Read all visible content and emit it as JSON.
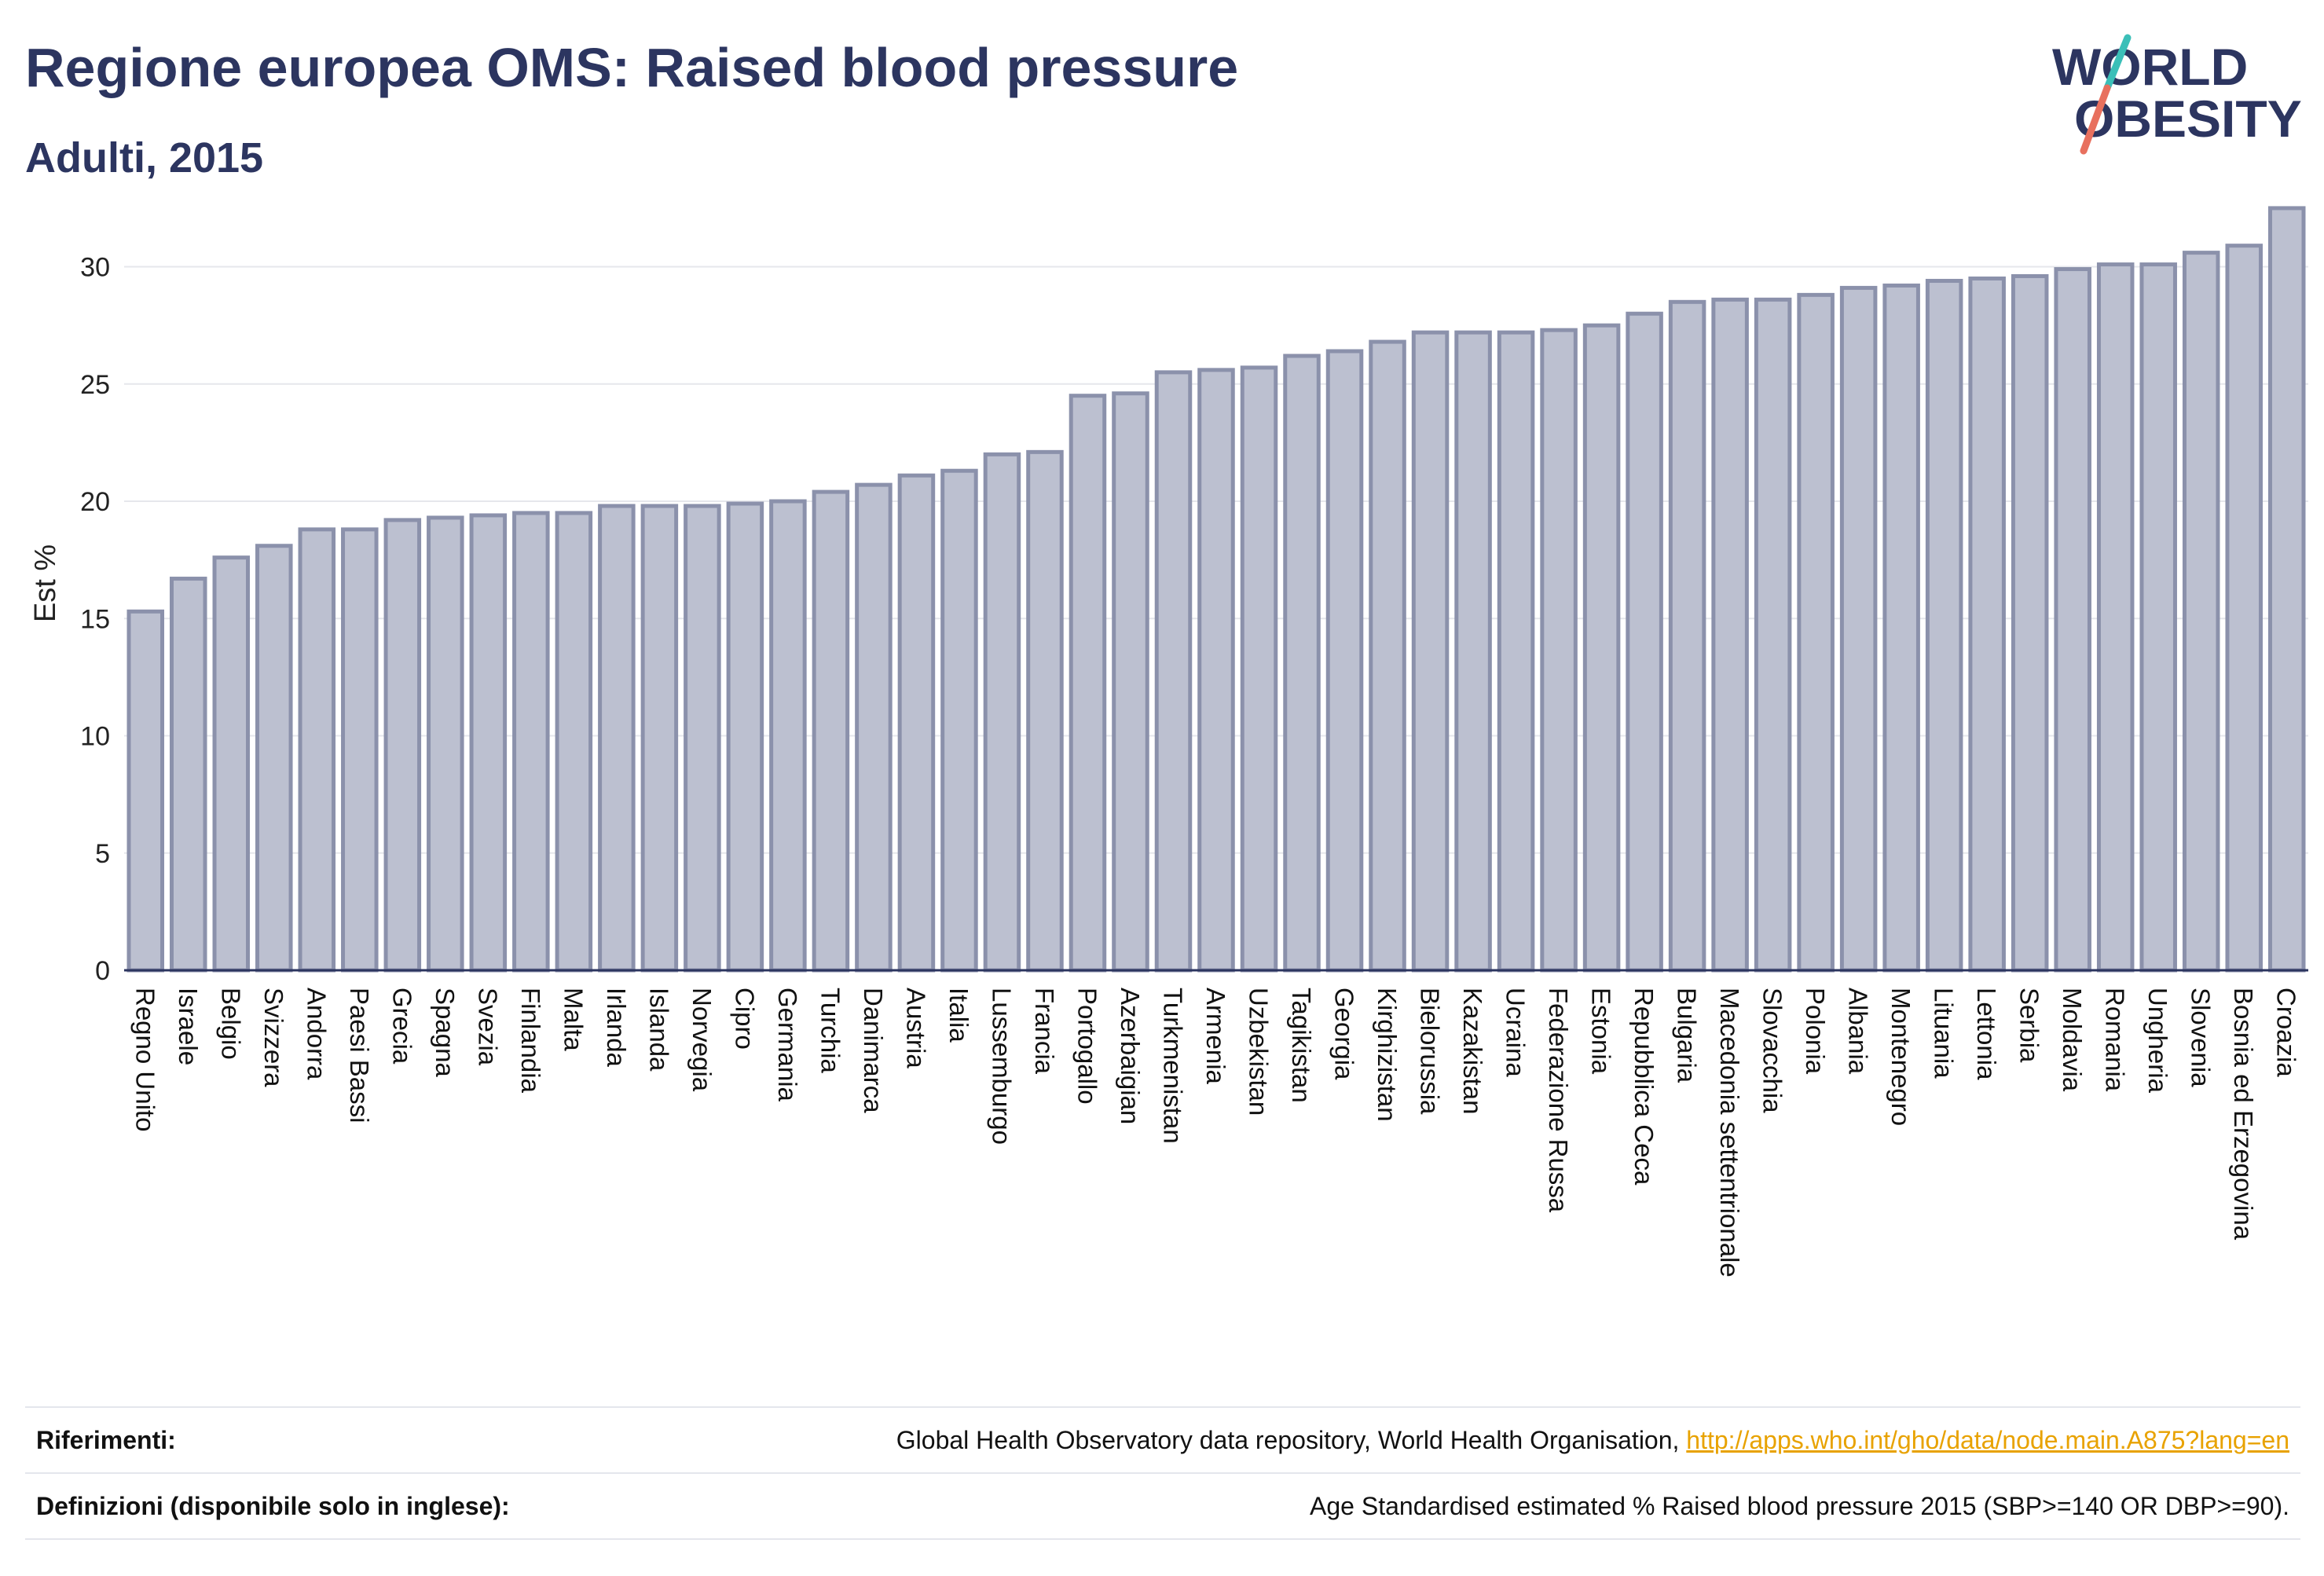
{
  "header": {
    "title": "Regione europea OMS: Raised blood pressure",
    "subtitle": "Adulti, 2015"
  },
  "logo": {
    "line1": "WORLD",
    "line2": "OBESITY",
    "accent_colors": [
      "#3bbfb8",
      "#e8705e"
    ]
  },
  "chart_data": {
    "type": "bar",
    "title": "Regione europea OMS: Raised blood pressure",
    "subtitle": "Adulti, 2015",
    "xlabel": "",
    "ylabel": "Est %",
    "ylim": [
      0,
      33
    ],
    "yticks": [
      0,
      5,
      10,
      15,
      20,
      25,
      30
    ],
    "grid": true,
    "bar_color": "#bcc0d0",
    "bar_edge_color": "#8b91ab",
    "categories": [
      "Regno Unito",
      "Israele",
      "Belgio",
      "Svizzera",
      "Andorra",
      "Paesi Bassi",
      "Grecia",
      "Spagna",
      "Svezia",
      "Finlandia",
      "Malta",
      "Irlanda",
      "Islanda",
      "Norvegia",
      "Cipro",
      "Germania",
      "Turchia",
      "Danimarca",
      "Austria",
      "Italia",
      "Lussemburgo",
      "Francia",
      "Portogallo",
      "Azerbaigian",
      "Turkmenistan",
      "Armenia",
      "Uzbekistan",
      "Tagikistan",
      "Georgia",
      "Kirghizistan",
      "Bielorussia",
      "Kazakistan",
      "Ucraina",
      "Federazione Russa",
      "Estonia",
      "Repubblica Ceca",
      "Bulgaria",
      "Macedonia settentrionale",
      "Slovacchia",
      "Polonia",
      "Albania",
      "Montenegro",
      "Lituania",
      "Lettonia",
      "Serbia",
      "Moldavia",
      "Romania",
      "Ungheria",
      "Slovenia",
      "Bosnia ed Erzegovina",
      "Croazia"
    ],
    "values": [
      15.3,
      16.7,
      17.6,
      18.1,
      18.8,
      18.8,
      19.2,
      19.3,
      19.4,
      19.5,
      19.5,
      19.8,
      19.8,
      19.8,
      19.9,
      20.0,
      20.4,
      20.7,
      21.1,
      21.3,
      22.0,
      22.1,
      24.5,
      24.6,
      25.5,
      25.6,
      25.7,
      26.2,
      26.4,
      26.8,
      27.2,
      27.2,
      27.2,
      27.3,
      27.5,
      28.0,
      28.5,
      28.6,
      28.6,
      28.8,
      29.1,
      29.2,
      29.4,
      29.5,
      29.6,
      29.9,
      30.1,
      30.1,
      30.6,
      30.9,
      32.5
    ]
  },
  "references": {
    "riferimenti_label": "Riferimenti:",
    "riferimenti_text": "Global Health Observatory data repository, World Health Organisation, ",
    "riferimenti_link": "http://apps.who.int/gho/data/node.main.A875?lang=en",
    "definizioni_label": "Definizioni (disponibile solo in inglese):",
    "definizioni_text": "Age Standardised estimated % Raised blood pressure 2015 (SBP>=140 OR DBP>=90)."
  }
}
